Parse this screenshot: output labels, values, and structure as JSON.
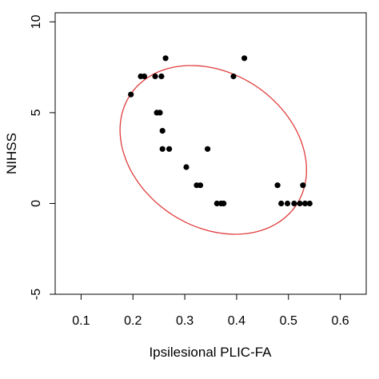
{
  "chart_data": {
    "type": "scatter",
    "title": "",
    "xlabel": "Ipsilesional PLIC-FA",
    "ylabel": "NIHSS",
    "xlim": [
      0.05,
      0.65
    ],
    "ylim": [
      -5.0,
      10.5
    ],
    "xticks": [
      0.1,
      0.2,
      0.3,
      0.4,
      0.5,
      0.6
    ],
    "yticks": [
      -5,
      0,
      5,
      10
    ],
    "grid": false,
    "legend": "none",
    "point_color": "#000000",
    "ellipse_color": "#e03c3c",
    "points": [
      {
        "x": 0.196,
        "y": 6
      },
      {
        "x": 0.215,
        "y": 7
      },
      {
        "x": 0.222,
        "y": 7
      },
      {
        "x": 0.243,
        "y": 7
      },
      {
        "x": 0.255,
        "y": 7
      },
      {
        "x": 0.263,
        "y": 8
      },
      {
        "x": 0.246,
        "y": 5
      },
      {
        "x": 0.252,
        "y": 5
      },
      {
        "x": 0.257,
        "y": 4
      },
      {
        "x": 0.257,
        "y": 3
      },
      {
        "x": 0.27,
        "y": 3
      },
      {
        "x": 0.303,
        "y": 2
      },
      {
        "x": 0.323,
        "y": 1
      },
      {
        "x": 0.33,
        "y": 1
      },
      {
        "x": 0.344,
        "y": 3
      },
      {
        "x": 0.362,
        "y": 0
      },
      {
        "x": 0.37,
        "y": 0
      },
      {
        "x": 0.375,
        "y": 0
      },
      {
        "x": 0.394,
        "y": 7
      },
      {
        "x": 0.415,
        "y": 8
      },
      {
        "x": 0.479,
        "y": 1
      },
      {
        "x": 0.486,
        "y": 0
      },
      {
        "x": 0.498,
        "y": 0
      },
      {
        "x": 0.511,
        "y": 0
      },
      {
        "x": 0.522,
        "y": 0
      },
      {
        "x": 0.528,
        "y": 1
      },
      {
        "x": 0.532,
        "y": 0
      },
      {
        "x": 0.541,
        "y": 0
      }
    ],
    "ellipse": {
      "cx": 0.355,
      "cy": 2.95,
      "semi_major": 0.2,
      "semi_minor": 4.06,
      "rotation_deg": -45,
      "note_units": "ellipse parameters expressed in normalized axis space"
    }
  }
}
